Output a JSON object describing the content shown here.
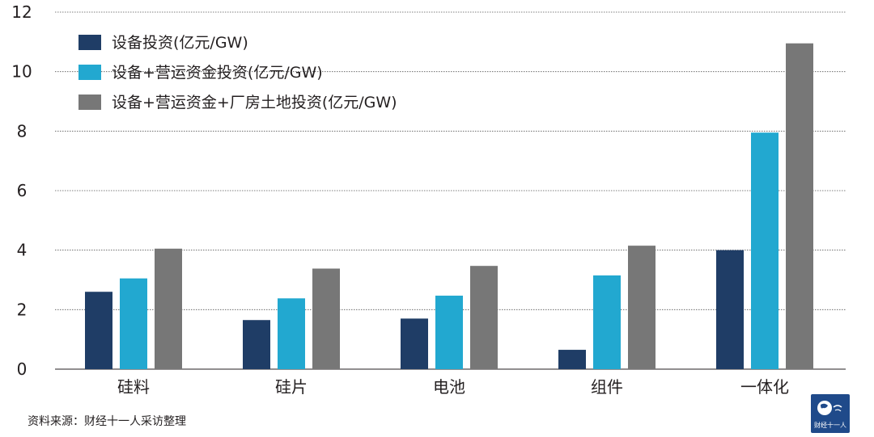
{
  "chart_data": {
    "type": "bar",
    "categories": [
      "硅料",
      "硅片",
      "电池",
      "组件",
      "一体化"
    ],
    "series": [
      {
        "name": "设备投资(亿元/GW)",
        "color": "#1f3d66",
        "values": [
          2.6,
          1.65,
          1.7,
          0.65,
          4.0
        ]
      },
      {
        "name": "设备+营运资金投资(亿元/GW)",
        "color": "#22a8d0",
        "values": [
          3.05,
          2.38,
          2.47,
          3.15,
          7.95
        ]
      },
      {
        "name": "设备+营运资金+厂房土地投资(亿元/GW)",
        "color": "#777777",
        "values": [
          4.05,
          3.38,
          3.47,
          4.15,
          10.95
        ]
      }
    ],
    "ylim": [
      0,
      12
    ],
    "yticks": [
      "0",
      "2",
      "4",
      "6",
      "8",
      "10",
      "12"
    ],
    "grid": true,
    "grid_style": "dotted",
    "legend_position": "top-left"
  },
  "source_text": "资料来源：财经十一人采访整理",
  "logo": {
    "icon": "globe-icon",
    "text": "财经十一人"
  }
}
